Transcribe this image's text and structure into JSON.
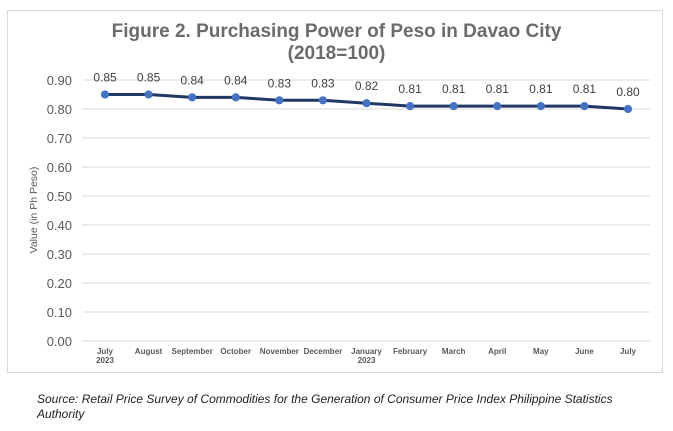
{
  "chart_data": {
    "type": "line",
    "title_lines": [
      "Figure 2. Purchasing Power of Peso in Davao City",
      "(2018=100)"
    ],
    "ylabel": "Value (in Ph Peso)",
    "xlabel": "",
    "ylim": [
      0.0,
      0.9
    ],
    "yticks": [
      "0.90",
      "0.80",
      "0.70",
      "0.60",
      "0.50",
      "0.40",
      "0.30",
      "0.20",
      "0.10",
      "0.00"
    ],
    "categories": [
      [
        "July",
        "2023"
      ],
      [
        "August"
      ],
      [
        "September"
      ],
      [
        "October"
      ],
      [
        "November"
      ],
      [
        "December"
      ],
      [
        "January",
        "2023"
      ],
      [
        "February"
      ],
      [
        "March"
      ],
      [
        "April"
      ],
      [
        "May"
      ],
      [
        "June"
      ],
      [
        "July"
      ]
    ],
    "series": [
      {
        "values": [
          0.85,
          0.85,
          0.84,
          0.84,
          0.83,
          0.83,
          0.82,
          0.81,
          0.81,
          0.81,
          0.81,
          0.81,
          0.8
        ],
        "labels": [
          "0.85",
          "0.85",
          "0.84",
          "0.84",
          "0.83",
          "0.83",
          "0.82",
          "0.81",
          "0.81",
          "0.81",
          "0.81",
          "0.81",
          "0.80"
        ]
      }
    ],
    "grid": true,
    "legend": "none",
    "colors": {
      "line": "#1f3864",
      "marker": "#4472c4",
      "grid": "#d9d9d9",
      "tick_text": "#595959",
      "title": "#6b6b6b"
    }
  },
  "source_note": "Source: Retail Price Survey of Commodities for the Generation of Consumer Price Index Philippine Statistics Authority"
}
